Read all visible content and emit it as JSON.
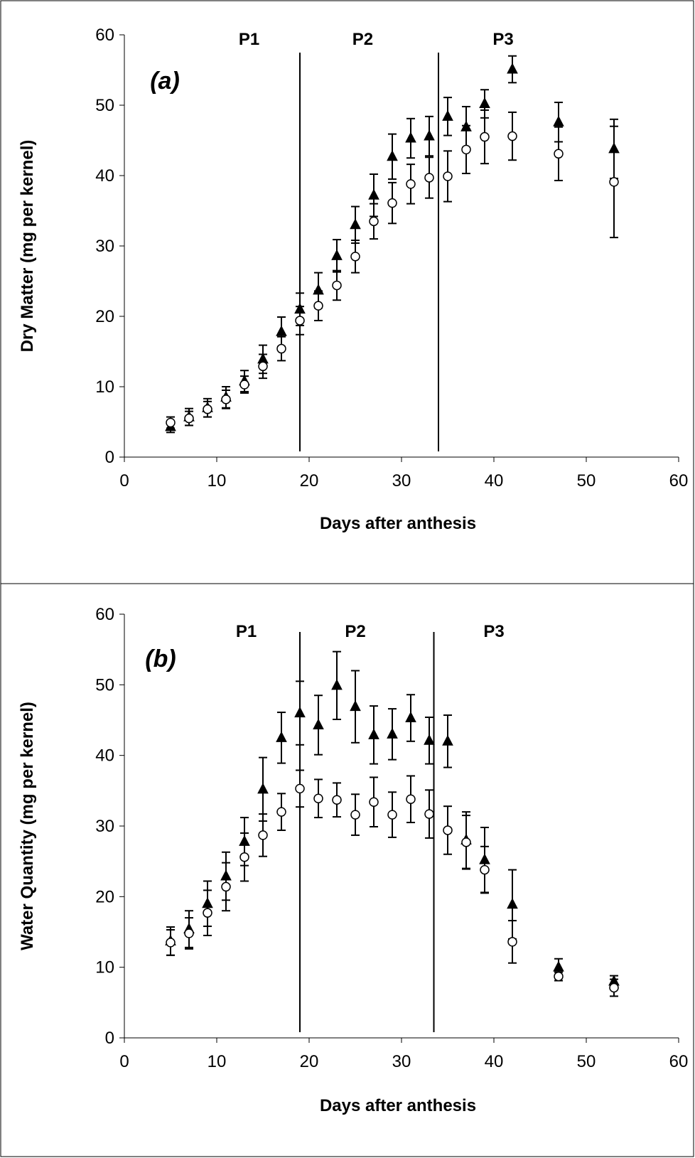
{
  "chart_data": [
    {
      "type": "scatter",
      "panel_label": "(a)",
      "xlabel": "Days after anthesis",
      "ylabel": "Dry Matter (mg per kernel)",
      "xlim": [
        0,
        60
      ],
      "ylim": [
        0,
        60
      ],
      "xticks": [
        0,
        10,
        20,
        30,
        40,
        50,
        60
      ],
      "yticks": [
        0,
        10,
        20,
        30,
        40,
        50,
        60
      ],
      "grid": false,
      "legend": "none",
      "periods": [
        {
          "label": "P1",
          "x": 13.5
        },
        {
          "label": "P2",
          "x": 25.8
        },
        {
          "label": "P3",
          "x": 41.0
        }
      ],
      "dividers": [
        19,
        34
      ],
      "series": [
        {
          "marker": "filled-triangle",
          "x": [
            5,
            7,
            9,
            11,
            13,
            15,
            17,
            19,
            21,
            23,
            25,
            27,
            29,
            31,
            33,
            35,
            37,
            39,
            42,
            47,
            53
          ],
          "y": [
            4.3,
            5.7,
            7.0,
            8.5,
            10.8,
            13.9,
            17.8,
            21.0,
            23.7,
            28.6,
            33.0,
            37.2,
            42.7,
            45.3,
            45.6,
            48.4,
            46.9,
            50.2,
            55.1,
            47.6,
            43.8
          ],
          "err": [
            0.8,
            1.2,
            1.3,
            1.5,
            1.5,
            2.0,
            2.1,
            2.3,
            2.5,
            2.3,
            2.6,
            3.0,
            3.2,
            2.8,
            2.8,
            2.7,
            2.9,
            2.0,
            1.9,
            2.8,
            4.2
          ]
        },
        {
          "marker": "open-circle",
          "x": [
            5,
            7,
            9,
            11,
            13,
            15,
            17,
            19,
            21,
            23,
            25,
            27,
            29,
            31,
            33,
            35,
            37,
            39,
            42,
            47,
            53
          ],
          "y": [
            4.9,
            5.5,
            6.8,
            8.2,
            10.3,
            12.9,
            15.4,
            19.4,
            21.5,
            24.4,
            28.5,
            33.5,
            36.1,
            38.8,
            39.7,
            39.9,
            43.7,
            45.5,
            45.6,
            43.1,
            39.1
          ],
          "err": [
            0.8,
            1.0,
            1.1,
            1.3,
            1.2,
            1.7,
            1.7,
            2.0,
            2.1,
            2.1,
            2.3,
            2.5,
            2.9,
            2.8,
            2.9,
            3.6,
            3.4,
            3.8,
            3.4,
            3.8,
            7.9
          ]
        }
      ]
    },
    {
      "type": "scatter",
      "panel_label": "(b)",
      "xlabel": "Days after anthesis",
      "ylabel": "Water Quantity (mg per kernel)",
      "xlim": [
        0,
        60
      ],
      "ylim": [
        0,
        60
      ],
      "xticks": [
        0,
        10,
        20,
        30,
        40,
        50,
        60
      ],
      "yticks": [
        0,
        10,
        20,
        30,
        40,
        50,
        60
      ],
      "grid": false,
      "legend": "none",
      "periods": [
        {
          "label": "P1",
          "x": 13.2
        },
        {
          "label": "P2",
          "x": 25.0
        },
        {
          "label": "P3",
          "x": 40.0
        }
      ],
      "dividers": [
        19,
        33.5
      ],
      "series": [
        {
          "marker": "filled-triangle",
          "x": [
            5,
            7,
            9,
            11,
            13,
            15,
            17,
            19,
            21,
            23,
            25,
            27,
            29,
            31,
            33,
            35,
            37,
            39,
            42,
            47,
            53
          ],
          "y": [
            13.7,
            15.4,
            19.0,
            22.9,
            27.8,
            35.2,
            42.5,
            46.0,
            44.3,
            49.9,
            46.9,
            42.9,
            43.0,
            45.3,
            42.1,
            42.0,
            28.0,
            25.2,
            18.9,
            10.0,
            8.0
          ],
          "err": [
            2.0,
            2.6,
            3.2,
            3.4,
            3.4,
            4.5,
            3.6,
            4.5,
            4.2,
            4.8,
            5.1,
            4.1,
            3.6,
            3.3,
            3.3,
            3.7,
            4.0,
            4.6,
            4.9,
            1.2,
            0.8
          ]
        },
        {
          "marker": "open-circle",
          "x": [
            5,
            7,
            9,
            11,
            13,
            15,
            17,
            19,
            21,
            23,
            25,
            27,
            29,
            31,
            33,
            35,
            37,
            39,
            42,
            47,
            53
          ],
          "y": [
            13.5,
            14.8,
            17.7,
            21.4,
            25.6,
            28.7,
            32.0,
            35.3,
            33.9,
            33.7,
            31.6,
            33.4,
            31.6,
            33.8,
            31.7,
            29.4,
            27.7,
            23.8,
            13.6,
            8.7,
            7.1
          ],
          "err": [
            1.8,
            2.2,
            3.2,
            3.4,
            3.4,
            3.0,
            2.6,
            2.6,
            2.7,
            2.4,
            2.9,
            3.5,
            3.2,
            3.3,
            3.4,
            3.4,
            3.8,
            3.3,
            3.0,
            0.6,
            1.2
          ]
        }
      ]
    }
  ]
}
